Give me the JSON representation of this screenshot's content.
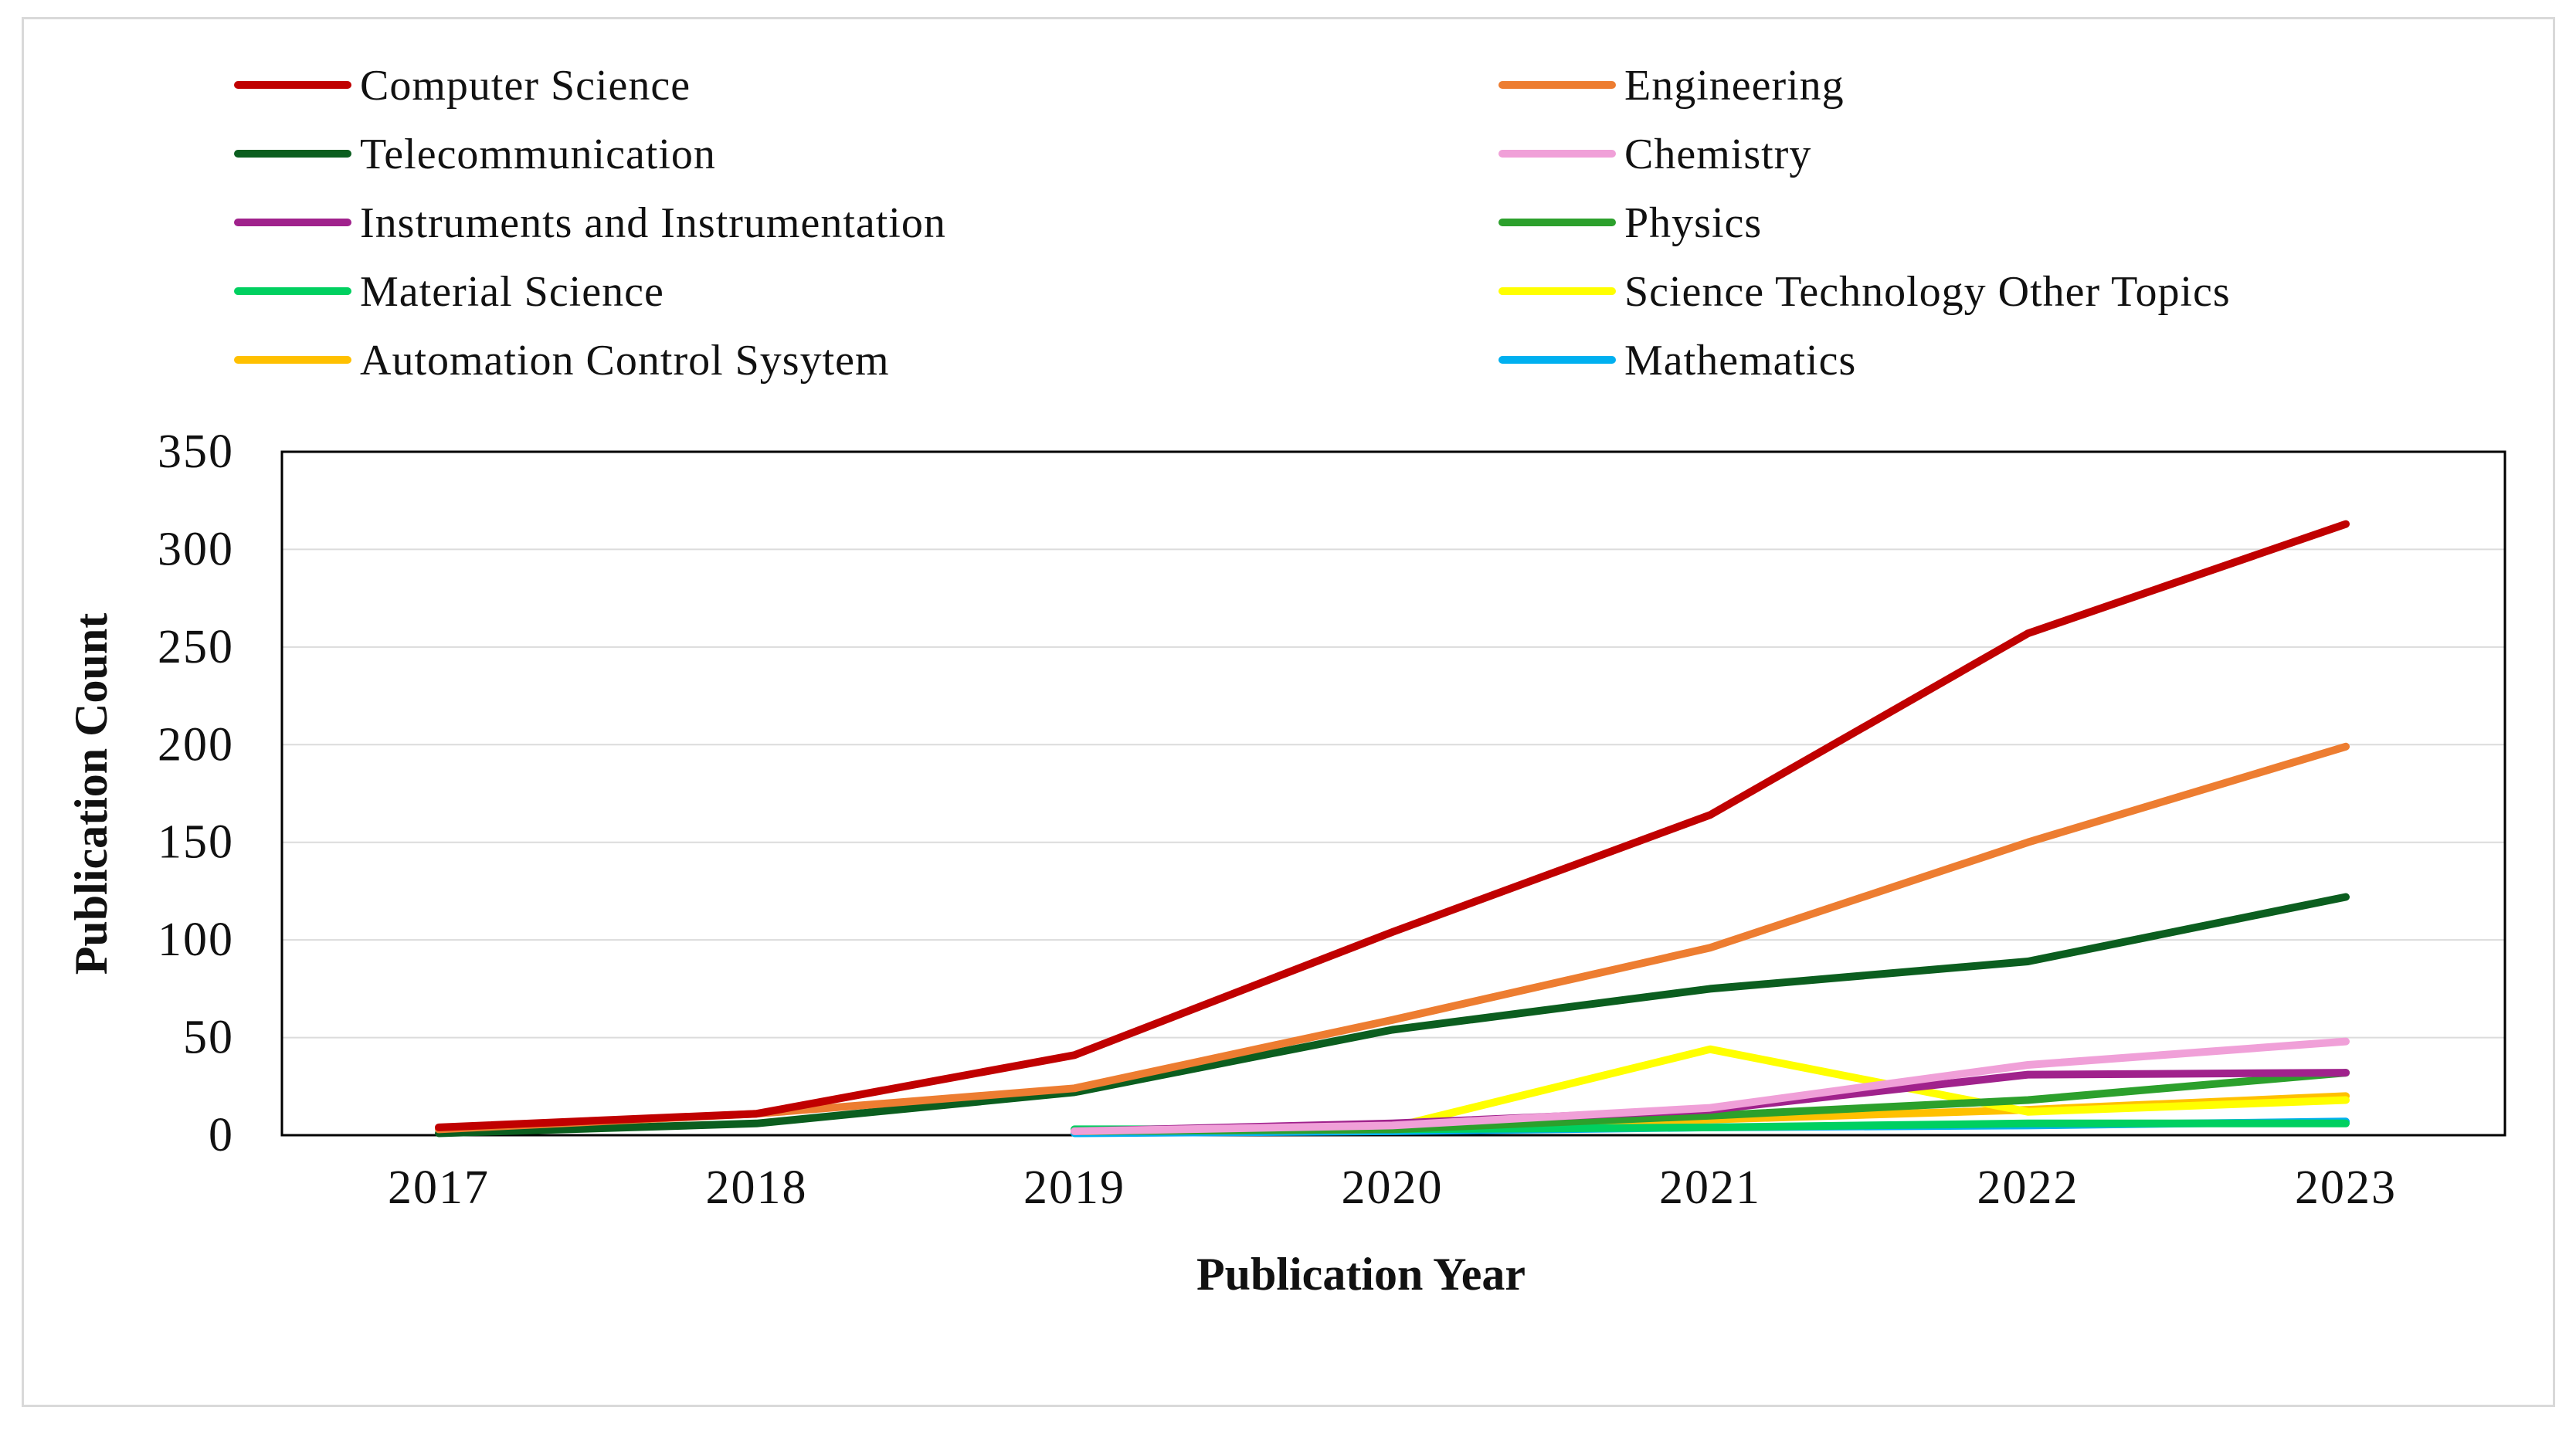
{
  "chart_data": {
    "type": "line",
    "title": "",
    "xlabel": "Publication Year",
    "ylabel": "Publication Count",
    "ylim": [
      0,
      350
    ],
    "yticks": [
      0,
      50,
      100,
      150,
      200,
      250,
      300,
      350
    ],
    "grid": true,
    "legend_position": "top",
    "x": [
      "2017",
      "2018",
      "2019",
      "2020",
      "2021",
      "2022",
      "2023"
    ],
    "series": [
      {
        "name": "Computer Science",
        "color": "#c00000",
        "values": [
          4,
          11,
          41,
          104,
          164,
          257,
          313
        ]
      },
      {
        "name": "Engineering",
        "color": "#ed7d31",
        "values": [
          3,
          11,
          24,
          59,
          96,
          150,
          199
        ]
      },
      {
        "name": "Telecommunication",
        "color": "#0b5e1f",
        "values": [
          1,
          6,
          22,
          54,
          75,
          89,
          122
        ]
      },
      {
        "name": "Chemistry",
        "color": "#f0a0d8",
        "values": [
          null,
          null,
          2,
          5,
          14,
          36,
          48
        ]
      },
      {
        "name": "Instruments and Instrumentation",
        "color": "#a0228c",
        "values": [
          null,
          null,
          2,
          6,
          13,
          31,
          32
        ]
      },
      {
        "name": "Physics",
        "color": "#2ca02c",
        "values": [
          null,
          null,
          2,
          3,
          10,
          18,
          32
        ]
      },
      {
        "name": "Material Science",
        "color": "#00d060",
        "values": [
          null,
          null,
          3,
          3,
          4,
          6,
          6
        ]
      },
      {
        "name": "Science Technology Other Topics",
        "color": "#ffff00",
        "values": [
          null,
          null,
          2,
          4,
          44,
          12,
          18
        ]
      },
      {
        "name": "Automation Control Sysytem",
        "color": "#ffc000",
        "values": [
          null,
          null,
          2,
          3,
          8,
          13,
          20
        ]
      },
      {
        "name": "Mathematics",
        "color": "#00b0f0",
        "values": [
          null,
          null,
          1,
          2,
          4,
          5,
          7
        ]
      }
    ]
  }
}
